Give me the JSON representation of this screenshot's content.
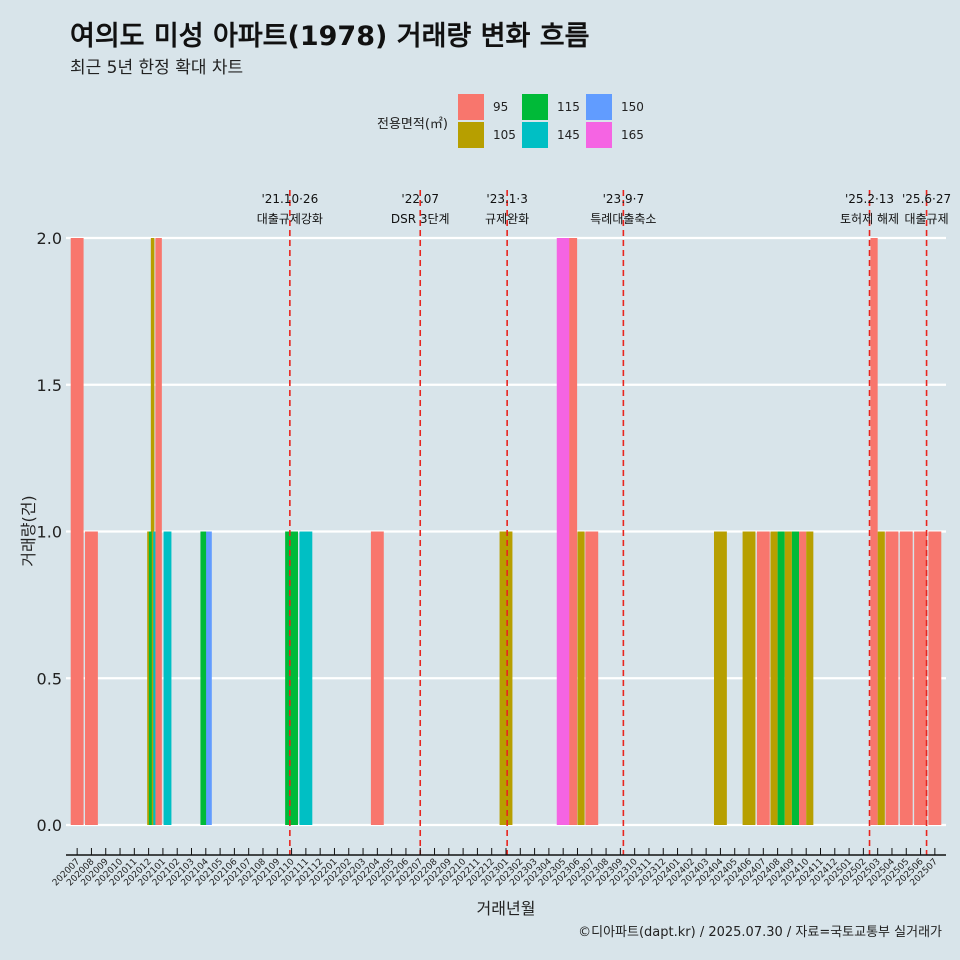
{
  "header": {
    "title": "여의도 미성 아파트(1978) 거래량 변화 흐름",
    "subtitle": "최근 5년 한정 확대 차트"
  },
  "caption": "©디아파트(dapt.kr) / 2025.07.30 / 자료=국토교통부 실거래가",
  "colors": {
    "background": "#d8e4ea",
    "grid": "#ffffff",
    "event_line": "#e8241e"
  },
  "chart_data": {
    "type": "bar",
    "stacked": true,
    "xlabel": "거래년월",
    "ylabel": "거래량(건)",
    "ylim": [
      0,
      2
    ],
    "y_ticks": [
      "0.0",
      "0.5",
      "1.0",
      "1.5",
      "2.0"
    ],
    "grid": true,
    "legend": {
      "title": "전용면적(㎡)",
      "position": "top",
      "entries": [
        {
          "label": "95",
          "color": "#f8766d"
        },
        {
          "label": "105",
          "color": "#b79f00"
        },
        {
          "label": "115",
          "color": "#00ba38"
        },
        {
          "label": "145",
          "color": "#00bfc4"
        },
        {
          "label": "150",
          "color": "#619cff"
        },
        {
          "label": "165",
          "color": "#f564e3"
        }
      ]
    },
    "categories": [
      "202007",
      "202008",
      "202009",
      "202010",
      "202011",
      "202012",
      "202101",
      "202102",
      "202103",
      "202104",
      "202105",
      "202106",
      "202107",
      "202108",
      "202109",
      "202110",
      "202111",
      "202112",
      "202201",
      "202202",
      "202203",
      "202204",
      "202205",
      "202206",
      "202207",
      "202208",
      "202209",
      "202210",
      "202211",
      "202212",
      "202301",
      "202302",
      "202303",
      "202304",
      "202305",
      "202306",
      "202307",
      "202308",
      "202309",
      "202310",
      "202311",
      "202312",
      "202401",
      "202402",
      "202403",
      "202404",
      "202405",
      "202406",
      "202407",
      "202408",
      "202409",
      "202410",
      "202411",
      "202412",
      "202501",
      "202502",
      "202503",
      "202504",
      "202505",
      "202506",
      "202507"
    ],
    "bars": [
      {
        "category": "202007",
        "area": "95",
        "value": 2,
        "offset": 0.5,
        "width": 0.9
      },
      {
        "category": "202008",
        "area": "95",
        "value": 1,
        "offset": 0.5,
        "width": 0.9
      },
      {
        "category": "202012",
        "area": "105",
        "value": 1,
        "offset": 0.5,
        "width": 0.2
      },
      {
        "category": "202012",
        "area": "105",
        "value": 2,
        "offset": 0.78,
        "width": 0.25
      },
      {
        "category": "202012",
        "area": "115",
        "value": 1,
        "offset": 0.62,
        "width": 0.2
      },
      {
        "category": "202012",
        "area": "145",
        "value": 1,
        "offset": 0.95,
        "width": 0.25
      },
      {
        "category": "202101",
        "area": "95",
        "value": 2,
        "offset": 0.2,
        "width": 0.45
      },
      {
        "category": "202101",
        "area": "145",
        "value": 1,
        "offset": 0.82,
        "width": 0.55
      },
      {
        "category": "202104",
        "area": "115",
        "value": 1,
        "offset": 0.35,
        "width": 0.45
      },
      {
        "category": "202104",
        "area": "150",
        "value": 1,
        "offset": 0.72,
        "width": 0.4
      },
      {
        "category": "202110",
        "area": "115",
        "value": 1,
        "offset": 0.5,
        "width": 0.9
      },
      {
        "category": "202111",
        "area": "145",
        "value": 1,
        "offset": 0.5,
        "width": 0.9
      },
      {
        "category": "202204",
        "area": "95",
        "value": 1,
        "offset": 0.5,
        "width": 0.9
      },
      {
        "category": "202301",
        "area": "105",
        "value": 1,
        "offset": 0.5,
        "width": 0.9
      },
      {
        "category": "202305",
        "area": "165",
        "value": 2,
        "offset": 0.5,
        "width": 0.9
      },
      {
        "category": "202306",
        "area": "95",
        "value": 2,
        "offset": 0.2,
        "width": 0.55
      },
      {
        "category": "202306",
        "area": "105",
        "value": 1,
        "offset": 0.75,
        "width": 0.5
      },
      {
        "category": "202307",
        "area": "95",
        "value": 1,
        "offset": 0.5,
        "width": 0.9
      },
      {
        "category": "202404",
        "area": "105",
        "value": 1,
        "offset": 0.5,
        "width": 0.9
      },
      {
        "category": "202406",
        "area": "105",
        "value": 1,
        "offset": 0.5,
        "width": 0.9
      },
      {
        "category": "202407",
        "area": "95",
        "value": 1,
        "offset": 0.5,
        "width": 0.9
      },
      {
        "category": "202408",
        "area": "105",
        "value": 1,
        "offset": 0.25,
        "width": 0.5
      },
      {
        "category": "202408",
        "area": "115",
        "value": 1,
        "offset": 0.75,
        "width": 0.5
      },
      {
        "category": "202409",
        "area": "105",
        "value": 1,
        "offset": 0.25,
        "width": 0.5
      },
      {
        "category": "202409",
        "area": "115",
        "value": 1,
        "offset": 0.75,
        "width": 0.5
      },
      {
        "category": "202410",
        "area": "95",
        "value": 1,
        "offset": 0.25,
        "width": 0.5
      },
      {
        "category": "202410",
        "area": "105",
        "value": 1,
        "offset": 0.75,
        "width": 0.5
      },
      {
        "category": "202503",
        "area": "95",
        "value": 2,
        "offset": 0.25,
        "width": 0.5
      },
      {
        "category": "202503",
        "area": "105",
        "value": 1,
        "offset": 0.75,
        "width": 0.5
      },
      {
        "category": "202504",
        "area": "95",
        "value": 1,
        "offset": 0.5,
        "width": 0.9
      },
      {
        "category": "202505",
        "area": "95",
        "value": 1,
        "offset": 0.5,
        "width": 0.9
      },
      {
        "category": "202506",
        "area": "95",
        "value": 1,
        "offset": 0.5,
        "width": 0.9
      },
      {
        "category": "202507",
        "area": "95",
        "value": 1,
        "offset": 0.5,
        "width": 0.9
      }
    ],
    "events": [
      {
        "date_label": "'21.10·26",
        "desc": "대출규제강화",
        "x_index": 15.38
      },
      {
        "date_label": "'22.07",
        "desc": "DSR 3단계",
        "x_index": 24.5
      },
      {
        "date_label": "'23.1·3",
        "desc": "규제완화",
        "x_index": 30.58
      },
      {
        "date_label": "'23.9·7",
        "desc": "특례대출축소",
        "x_index": 38.71
      },
      {
        "date_label": "'25.2·13",
        "desc": "토허제 해제",
        "x_index": 55.93
      },
      {
        "date_label": "'25.6·27",
        "desc": "대출규제",
        "x_index": 59.92
      }
    ]
  }
}
